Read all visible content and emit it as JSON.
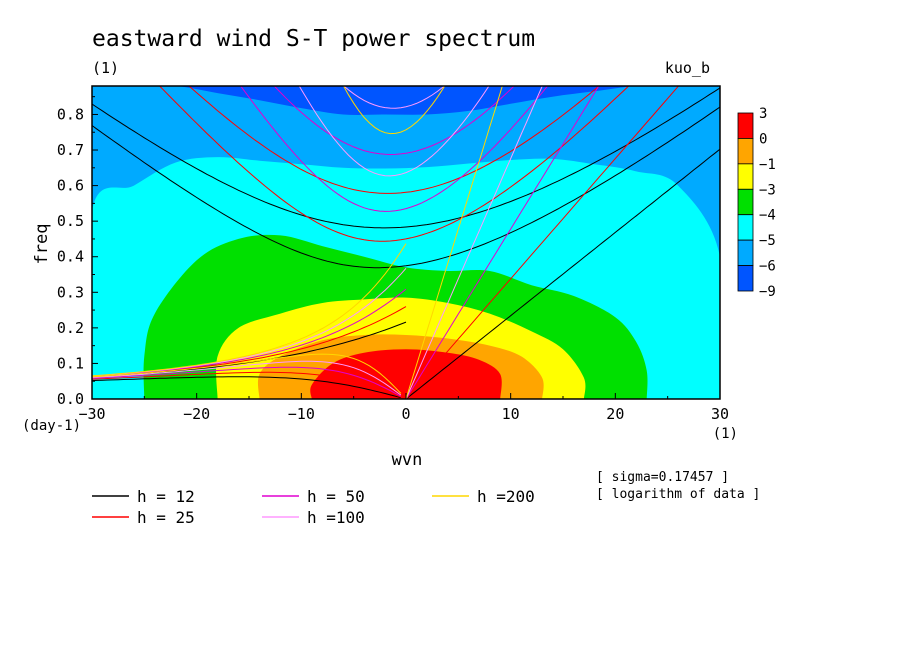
{
  "chart_data": {
    "type": "heatmap",
    "title": "eastward wind S-T power spectrum",
    "subtitle_left": "(1)",
    "subtitle_right": "kuo_b",
    "xlabel": "wvn",
    "ylabel": "freq",
    "x_unit": "(1)",
    "y_unit": "(day-1)",
    "xlim": [
      -30,
      30
    ],
    "ylim": [
      0,
      0.88
    ],
    "xticks": [
      -30,
      -20,
      -10,
      0,
      10,
      20,
      30
    ],
    "yticks": [
      0.0,
      0.1,
      0.2,
      0.3,
      0.4,
      0.5,
      0.6,
      0.7,
      0.8
    ],
    "colorbar": {
      "labels": [
        "3",
        "0",
        "-1",
        "-3",
        "-4",
        "-5",
        "-6",
        "-9"
      ],
      "colors": [
        "#ff0000",
        "#ffa500",
        "#ffff00",
        "#00e000",
        "#00ffff",
        "#00aaff",
        "#0055ff"
      ]
    },
    "contours": [
      {
        "level": "-6",
        "color": "#00aaff",
        "points": [
          [
            -30,
            0.88
          ],
          [
            -26,
            0.88
          ],
          [
            -22,
            0.88
          ],
          [
            -18,
            0.86
          ],
          [
            -14,
            0.84
          ],
          [
            -10,
            0.818
          ],
          [
            -6,
            0.8
          ],
          [
            -2,
            0.8
          ],
          [
            2,
            0.8
          ],
          [
            6,
            0.81
          ],
          [
            10,
            0.83
          ],
          [
            14,
            0.85
          ],
          [
            18,
            0.865
          ],
          [
            22,
            0.88
          ],
          [
            26,
            0.88
          ],
          [
            30,
            0.88
          ]
        ]
      },
      {
        "level": "-5",
        "color": "#00ffff",
        "points": [
          [
            -30,
            0.53
          ],
          [
            -26,
            0.6
          ],
          [
            -22,
            0.665
          ],
          [
            -18,
            0.68
          ],
          [
            -14,
            0.67
          ],
          [
            -10,
            0.66
          ],
          [
            -6,
            0.65
          ],
          [
            -2,
            0.648
          ],
          [
            2,
            0.652
          ],
          [
            6,
            0.662
          ],
          [
            10,
            0.672
          ],
          [
            14,
            0.675
          ],
          [
            18,
            0.66
          ],
          [
            22,
            0.64
          ],
          [
            26,
            0.6
          ],
          [
            30,
            0.4
          ]
        ]
      },
      {
        "level": "-4",
        "color": "#00e000",
        "points": [
          [
            -25,
            0.0
          ],
          [
            -25,
            0.12
          ],
          [
            -24,
            0.24
          ],
          [
            -20,
            0.39
          ],
          [
            -16,
            0.45
          ],
          [
            -12,
            0.46
          ],
          [
            -8,
            0.43
          ],
          [
            -4,
            0.4
          ],
          [
            0,
            0.37
          ],
          [
            4,
            0.36
          ],
          [
            8,
            0.36
          ],
          [
            12,
            0.32
          ],
          [
            16,
            0.29
          ],
          [
            20,
            0.23
          ],
          [
            22,
            0.16
          ],
          [
            23,
            0.08
          ],
          [
            23,
            0.0
          ]
        ]
      },
      {
        "level": "-3",
        "color": "#ffff00",
        "points": [
          [
            -18,
            0.0
          ],
          [
            -18,
            0.12
          ],
          [
            -16,
            0.2
          ],
          [
            -12,
            0.24
          ],
          [
            -8,
            0.27
          ],
          [
            -4,
            0.28
          ],
          [
            0,
            0.285
          ],
          [
            4,
            0.27
          ],
          [
            8,
            0.24
          ],
          [
            12,
            0.19
          ],
          [
            15,
            0.14
          ],
          [
            17,
            0.06
          ],
          [
            17,
            0.0
          ]
        ]
      },
      {
        "level": "-1",
        "color": "#ffa500",
        "points": [
          [
            -14,
            0.0
          ],
          [
            -14,
            0.07
          ],
          [
            -12,
            0.12
          ],
          [
            -8,
            0.165
          ],
          [
            -4,
            0.18
          ],
          [
            0,
            0.18
          ],
          [
            4,
            0.17
          ],
          [
            8,
            0.15
          ],
          [
            11,
            0.12
          ],
          [
            13,
            0.06
          ],
          [
            13,
            0.0
          ]
        ]
      },
      {
        "level": "0",
        "color": "#ff0000",
        "points": [
          [
            -9,
            0.0
          ],
          [
            -9,
            0.04
          ],
          [
            -7,
            0.1
          ],
          [
            -4,
            0.13
          ],
          [
            0,
            0.14
          ],
          [
            4,
            0.13
          ],
          [
            7,
            0.11
          ],
          [
            9,
            0.07
          ],
          [
            9,
            0.0
          ]
        ]
      }
    ],
    "series": [
      {
        "name": "h = 12",
        "color": "#000000"
      },
      {
        "name": "h = 25",
        "color": "#ff0000"
      },
      {
        "name": "h = 50",
        "color": "#e000d0"
      },
      {
        "name": "h =100",
        "color": "#ff99ff"
      },
      {
        "name": "h =200",
        "color": "#ffd700"
      }
    ],
    "annotations": [
      "[ sigma=0.17457 ]",
      "[ logarithm of data ]"
    ]
  }
}
